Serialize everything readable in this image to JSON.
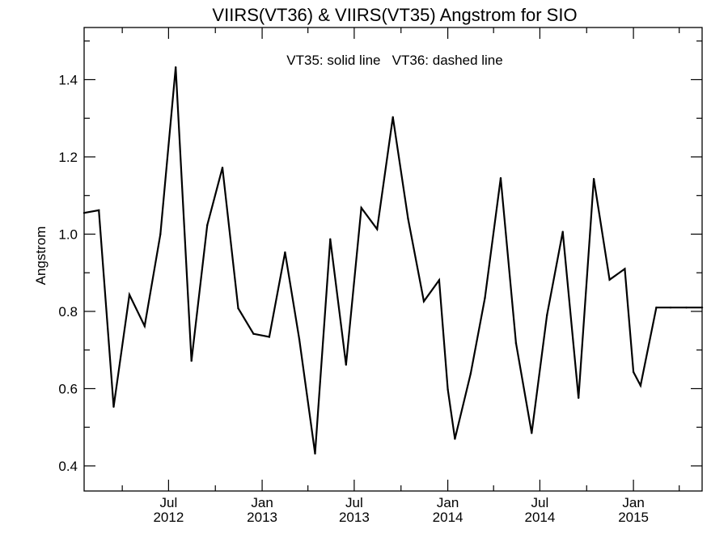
{
  "chart_data": {
    "type": "line",
    "title": "VIIRS(VT36) & VIIRS(VT35)  Angstrom for SIO",
    "annotation": "VT35: solid line   VT36: dashed line",
    "ylabel": "Angstrom",
    "xlabel": "",
    "ylim": [
      0.335,
      1.535
    ],
    "xlim": [
      "2012-01-17",
      "2015-05-16"
    ],
    "y_ticks": [
      0.4,
      0.6,
      0.8,
      1.0,
      1.2,
      1.4
    ],
    "y_tick_labels": [
      "0.4",
      "0.6",
      "0.8",
      "1.0",
      "1.2",
      "1.4"
    ],
    "x_ticks": [
      {
        "date": "2012-07-01",
        "month": "Jul",
        "year": "2012"
      },
      {
        "date": "2013-01-01",
        "month": "Jan",
        "year": "2013"
      },
      {
        "date": "2013-07-01",
        "month": "Jul",
        "year": "2013"
      },
      {
        "date": "2014-01-01",
        "month": "Jan",
        "year": "2014"
      },
      {
        "date": "2014-07-01",
        "month": "Jul",
        "year": "2014"
      },
      {
        "date": "2015-01-01",
        "month": "Jan",
        "year": "2015"
      }
    ],
    "x_minor_ticks": [
      "2012-04-01",
      "2012-10-01",
      "2013-04-01",
      "2013-10-01",
      "2014-04-01",
      "2014-10-01",
      "2015-04-01"
    ],
    "grid": false,
    "series": [
      {
        "style": "solid",
        "color": "#000000",
        "x": [
          "2012-01-17",
          "2012-02-15",
          "2012-03-15",
          "2012-04-15",
          "2012-05-15",
          "2012-06-15",
          "2012-07-15",
          "2012-08-15",
          "2012-09-15",
          "2012-10-15",
          "2012-11-15",
          "2012-12-15",
          "2013-01-15",
          "2013-02-15",
          "2013-03-15",
          "2013-04-15",
          "2013-05-15",
          "2013-06-15",
          "2013-07-15",
          "2013-08-15",
          "2013-09-15",
          "2013-10-15",
          "2013-11-15",
          "2013-12-15",
          "2014-01-01",
          "2014-01-15",
          "2014-02-15",
          "2014-03-15",
          "2014-04-15",
          "2014-05-15",
          "2014-06-15",
          "2014-07-15",
          "2014-08-15",
          "2014-09-15",
          "2014-10-15",
          "2014-11-15",
          "2014-12-15",
          "2015-01-01",
          "2015-01-15",
          "2015-02-15",
          "2015-03-15",
          "2015-04-15",
          "2015-05-16"
        ],
        "values": [
          1.055,
          1.062,
          0.553,
          0.843,
          0.762,
          1.0,
          1.432,
          0.672,
          1.023,
          1.172,
          0.808,
          0.742,
          0.734,
          0.953,
          0.728,
          0.432,
          0.987,
          0.662,
          1.068,
          1.013,
          1.303,
          1.04,
          0.826,
          0.881,
          0.598,
          0.47,
          0.639,
          0.835,
          1.145,
          0.718,
          0.485,
          0.79,
          1.006,
          0.576,
          1.143,
          0.882,
          0.91,
          0.643,
          0.608,
          0.81,
          0.81,
          0.81,
          0.81
        ]
      }
    ]
  }
}
